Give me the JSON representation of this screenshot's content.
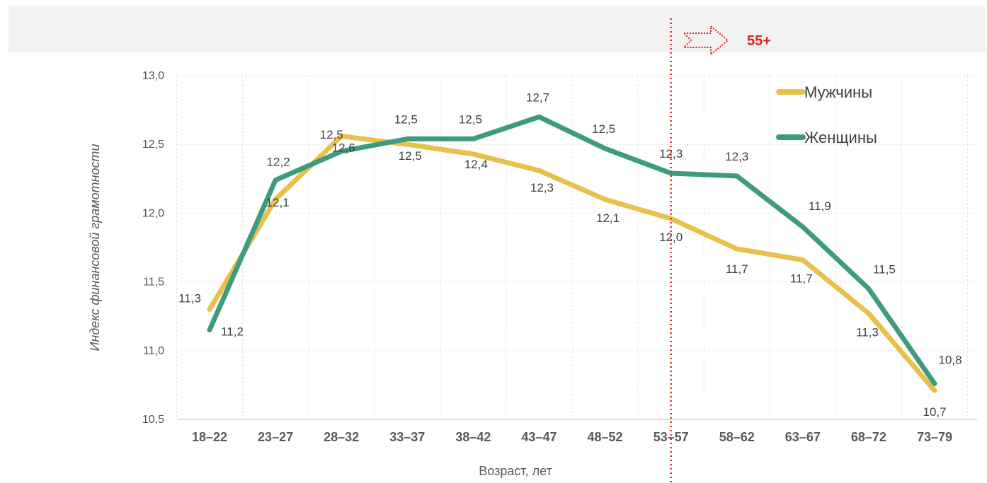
{
  "chart_data": {
    "type": "line",
    "categories": [
      "18–22",
      "23–27",
      "28–32",
      "33–37",
      "38–42",
      "43–47",
      "48–52",
      "53–57",
      "58–62",
      "63–67",
      "68–72",
      "73–79"
    ],
    "series": [
      {
        "name": "Мужчины",
        "color": "#e8c04a",
        "values": [
          11.3,
          12.1,
          12.56,
          12.5,
          12.43,
          12.31,
          12.1,
          11.96,
          11.74,
          11.66,
          11.27,
          10.71
        ],
        "labels": [
          "11,3",
          "12,1",
          "12,6",
          "12,5",
          "12,4",
          "12,3",
          "12,1",
          "12,0",
          "11,7",
          "11,7",
          "11,3",
          "10,7"
        ]
      },
      {
        "name": "Женщины",
        "color": "#3f9b80",
        "values": [
          11.15,
          12.24,
          12.45,
          12.54,
          12.54,
          12.7,
          12.47,
          12.29,
          12.27,
          11.9,
          11.45,
          10.76
        ],
        "labels": [
          "11,2",
          "12,2",
          "12,5",
          "12,5",
          "12,5",
          "12,7",
          "12,5",
          "12,3",
          "12,3",
          "11,9",
          "11,5",
          "10,8"
        ]
      }
    ],
    "xlabel": "Возраст, лет",
    "ylabel": "Индекс финансовой грамотности",
    "ylim": [
      10.5,
      13.0
    ],
    "yticks": [
      10.5,
      11.0,
      11.5,
      12.0,
      12.5,
      13.0
    ],
    "ytick_labels": [
      "10,5",
      "11,0",
      "11,5",
      "12,0",
      "12,5",
      "13,0"
    ],
    "grid": true,
    "legend": "top-right",
    "marker": {
      "label": "55+",
      "color": "#e02020"
    }
  }
}
